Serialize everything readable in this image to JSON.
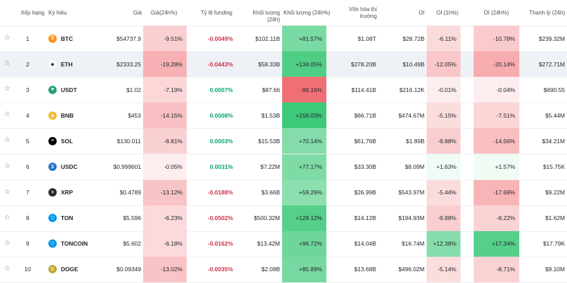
{
  "headers": {
    "rank": "Xếp hạng",
    "symbol": "Ký hiệu",
    "price": "Giá",
    "price_change": "Giá(24h%)",
    "funding": "Tỷ lệ funding",
    "volume": "Khối lượng (24h)",
    "volume_change": "Khối lượng (24h%)",
    "mcap_line1": "Vốn hóa thị",
    "mcap_line2": "trường",
    "oi": "OI",
    "oi_1h": "OI (1h%)",
    "oi_24h": "OI (24h%)",
    "liq": "Thanh lý (24h)"
  },
  "rows": [
    {
      "rank": "1",
      "symbol": "BTC",
      "icon": "btc-icon",
      "icon_color": "#f7931a",
      "glyph": "₿",
      "price": "$54737.9",
      "price_change": "-9.51%",
      "funding": "-0.0049%",
      "volume": "$102.11B",
      "volume_change": "+81.57%",
      "mcap": "$1.08T",
      "oi": "$28.72B",
      "oi_1h": "-6.11%",
      "oi_24h": "-10.78%",
      "liq": "$239.32M"
    },
    {
      "rank": "2",
      "symbol": "ETH",
      "icon": "eth-icon",
      "icon_color": "#ffffff",
      "glyph": "◆",
      "price": "$2333.25",
      "price_change": "-19.28%",
      "funding": "-0.0443%",
      "volume": "$58.33B",
      "volume_change": "+134.05%",
      "mcap": "$278.20B",
      "oi": "$10.49B",
      "oi_1h": "-12.05%",
      "oi_24h": "-20.14%",
      "liq": "$272.71M"
    },
    {
      "rank": "3",
      "symbol": "USDT",
      "icon": "usdt-icon",
      "icon_color": "#26a17b",
      "glyph": "▼",
      "price": "$1.02",
      "price_change": "-7.19%",
      "funding": "0.0007%",
      "volume": "$87.66",
      "volume_change": "-99.16%",
      "mcap": "$114.41B",
      "oi": "$216.12K",
      "oi_1h": "-0.01%",
      "oi_24h": "-0.04%",
      "liq": "$690.55"
    },
    {
      "rank": "4",
      "symbol": "BNB",
      "icon": "bnb-icon",
      "icon_color": "#f3ba2f",
      "glyph": "◈",
      "price": "$453",
      "price_change": "-14.15%",
      "funding": "0.0008%",
      "volume": "$1.53B",
      "volume_change": "+158.03%",
      "mcap": "$66.71B",
      "oi": "$474.67M",
      "oi_1h": "-5.15%",
      "oi_24h": "-7.51%",
      "liq": "$5.44M"
    },
    {
      "rank": "5",
      "symbol": "SOL",
      "icon": "sol-icon",
      "icon_color": "#000000",
      "glyph": "≡",
      "price": "$130.011",
      "price_change": "-8.81%",
      "funding": "0.0003%",
      "volume": "$15.53B",
      "volume_change": "+70.14%",
      "mcap": "$61.76B",
      "oi": "$1.89B",
      "oi_1h": "-9.88%",
      "oi_24h": "-14.56%",
      "liq": "$34.21M"
    },
    {
      "rank": "6",
      "symbol": "USDC",
      "icon": "usdc-icon",
      "icon_color": "#2775ca",
      "glyph": "$",
      "price": "$0.999601",
      "price_change": "-0.05%",
      "funding": "0.0031%",
      "volume": "$7.22M",
      "volume_change": "+77.17%",
      "mcap": "$33.30B",
      "oi": "$8.09M",
      "oi_1h": "+1.63%",
      "oi_24h": "+1.57%",
      "liq": "$15.75K"
    },
    {
      "rank": "7",
      "symbol": "XRP",
      "icon": "xrp-icon",
      "icon_color": "#23292f",
      "glyph": "✕",
      "price": "$0.4789",
      "price_change": "-13.12%",
      "funding": "-0.0188%",
      "volume": "$3.66B",
      "volume_change": "+59.29%",
      "mcap": "$26.99B",
      "oi": "$543.97M",
      "oi_1h": "-5.44%",
      "oi_24h": "-17.69%",
      "liq": "$9.22M"
    },
    {
      "rank": "8",
      "symbol": "TON",
      "icon": "ton-icon",
      "icon_color": "#0098ea",
      "glyph": "▽",
      "price": "$5.596",
      "price_change": "-6.23%",
      "funding": "-0.0502%",
      "volume": "$500.32M",
      "volume_change": "+128.12%",
      "mcap": "$14.12B",
      "oi": "$194.93M",
      "oi_1h": "-9.88%",
      "oi_24h": "-8.22%",
      "liq": "$1.62M"
    },
    {
      "rank": "9",
      "symbol": "TONCOIN",
      "icon": "toncoin-icon",
      "icon_color": "#0098ea",
      "glyph": "▽",
      "price": "$5.602",
      "price_change": "-6.18%",
      "funding": "-0.0162%",
      "volume": "$13.42M",
      "volume_change": "+96.72%",
      "mcap": "$14.04B",
      "oi": "$16.74M",
      "oi_1h": "+12.38%",
      "oi_24h": "+17.34%",
      "liq": "$17.79K"
    },
    {
      "rank": "10",
      "symbol": "DOGE",
      "icon": "doge-icon",
      "icon_color": "#c2a633",
      "glyph": "Ð",
      "price": "$0.09349",
      "price_change": "-13.02%",
      "funding": "-0.0035%",
      "volume": "$2.08B",
      "volume_change": "+85.89%",
      "mcap": "$13.68B",
      "oi": "$496.02M",
      "oi_1h": "-5.14%",
      "oi_24h": "-8.71%",
      "liq": "$9.10M"
    }
  ]
}
